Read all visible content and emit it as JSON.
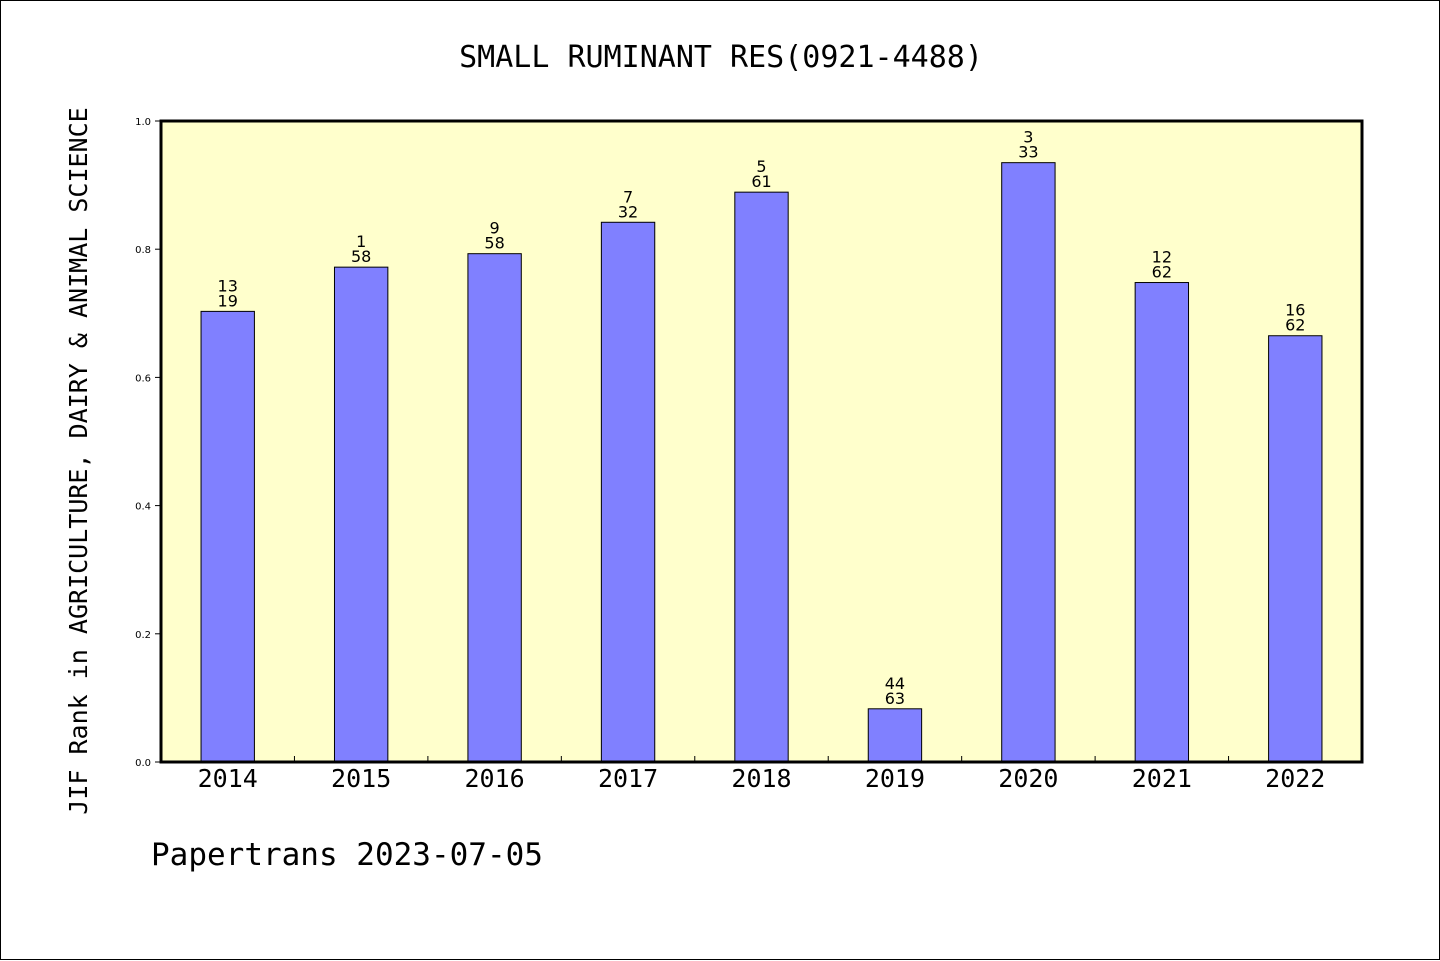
{
  "chart_data": {
    "type": "bar",
    "title": "SMALL RUMINANT RES(0921-4488)",
    "ylabel": "JIF Rank in AGRICULTURE, DAIRY & ANIMAL SCIENCE",
    "xlabel": "",
    "ylim": [
      0,
      1.0
    ],
    "yticks": [
      "0.0",
      "0.2",
      "0.4",
      "0.6",
      "0.8",
      "1.0"
    ],
    "categories": [
      "2014",
      "2015",
      "2016",
      "2017",
      "2018",
      "2019",
      "2020",
      "2021",
      "2022"
    ],
    "values": [
      0.703,
      0.772,
      0.793,
      0.842,
      0.889,
      0.083,
      0.935,
      0.748,
      0.665
    ],
    "rank": [
      "13",
      "1",
      "9",
      "7",
      "5",
      "44",
      "3",
      "12",
      "16"
    ],
    "total": [
      "19",
      "58",
      "58",
      "32",
      "61",
      "63",
      "33",
      "62",
      "62"
    ],
    "grid": false,
    "colors": {
      "plot_background": "#ffffcc",
      "bar_fill": "#8080ff",
      "bar_stroke": "#000000"
    }
  },
  "footer": "Papertrans 2023-07-05"
}
